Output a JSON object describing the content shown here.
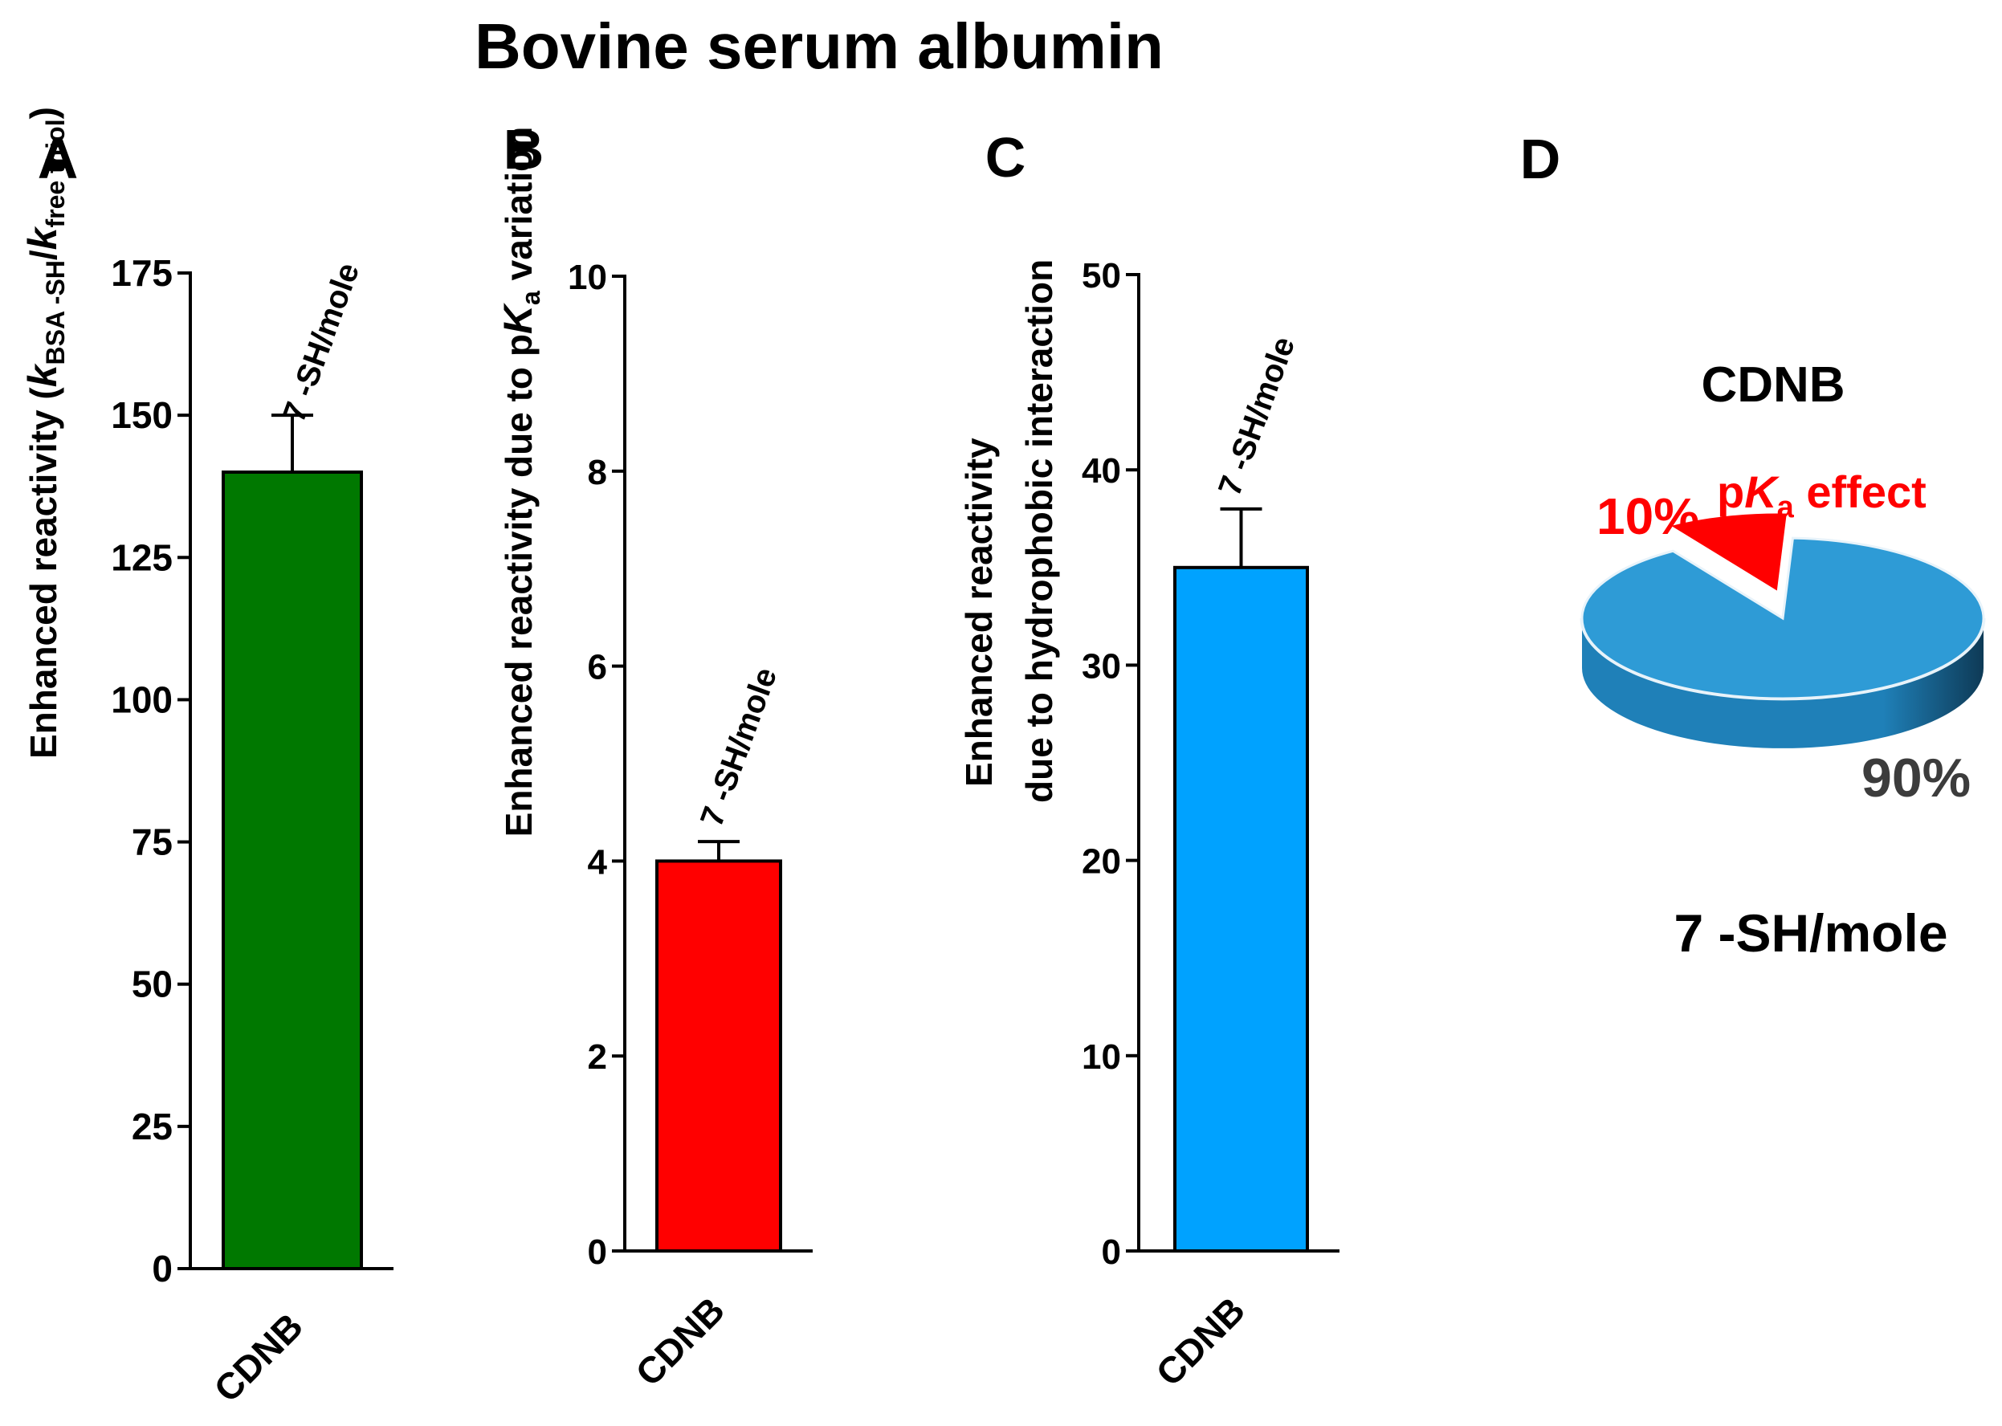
{
  "figure": {
    "title": "Bovine serum albumin"
  },
  "chart_data": [
    {
      "type": "bar",
      "panel_label": "A",
      "categories": [
        "CDNB"
      ],
      "values": [
        140
      ],
      "error_upper": [
        150
      ],
      "bar_colors": [
        "#007800"
      ],
      "bar_annotations": [
        "7 -SH/mole"
      ],
      "ylabel": {
        "lead": "Enhanced reactivity (",
        "k1": "k",
        "k1_sub": "BSA -SH",
        "slash": "/",
        "k2": "k",
        "k2_sub": "free thiol",
        "close": ")"
      },
      "ylim": [
        0,
        175
      ],
      "yticks": [
        0,
        25,
        50,
        75,
        100,
        125,
        150,
        175
      ],
      "ytick_labels": [
        "0",
        "25",
        "50",
        "75",
        "100",
        "125",
        "150",
        "175"
      ]
    },
    {
      "type": "bar",
      "panel_label": "B",
      "categories": [
        "CDNB"
      ],
      "values": [
        4
      ],
      "error_upper": [
        4.2
      ],
      "bar_colors": [
        "#ff0000"
      ],
      "bar_annotations": [
        "7 -SH/mole"
      ],
      "ylabel": {
        "lead": "Enhanced reactivity due to p",
        "k": "K",
        "k_sub": "a",
        "tail": " variation"
      },
      "ylim": [
        0,
        10
      ],
      "yticks": [
        0,
        2,
        4,
        6,
        8,
        10
      ],
      "ytick_labels": [
        "0",
        "2",
        "4",
        "6",
        "8",
        "10"
      ]
    },
    {
      "type": "bar",
      "panel_label": "C",
      "categories": [
        "CDNB"
      ],
      "values": [
        35
      ],
      "error_upper": [
        38
      ],
      "bar_colors": [
        "#00a2ff"
      ],
      "bar_annotations": [
        "7 -SH/mole"
      ],
      "ylabel": {
        "line1": "Enhanced reactivity",
        "line2": "due to hydrophobic interaction"
      },
      "ylim": [
        0,
        50
      ],
      "yticks": [
        0,
        10,
        20,
        30,
        40,
        50
      ],
      "ytick_labels": [
        "0",
        "10",
        "20",
        "30",
        "40",
        "50"
      ]
    },
    {
      "type": "pie",
      "panel_label": "D",
      "title": "CDNB",
      "subtitle": "7 -SH/mole",
      "slices": [
        {
          "label": "pKa effect",
          "value": 10,
          "value_label": "10%",
          "color": "#ff0000",
          "label_p": "p",
          "label_k": "K",
          "label_sub": "a",
          "label_tail": " effect"
        },
        {
          "label": "",
          "value": 90,
          "value_label": "90%",
          "color": "#2e9bd6"
        }
      ]
    }
  ],
  "colors": {
    "axis": "#000000",
    "pie_side_light": "#1f80b8",
    "pie_side_dark": "#0e3a56",
    "pie_value_label": "#3c3c3c",
    "pie_edge": "#e8f3fa"
  }
}
